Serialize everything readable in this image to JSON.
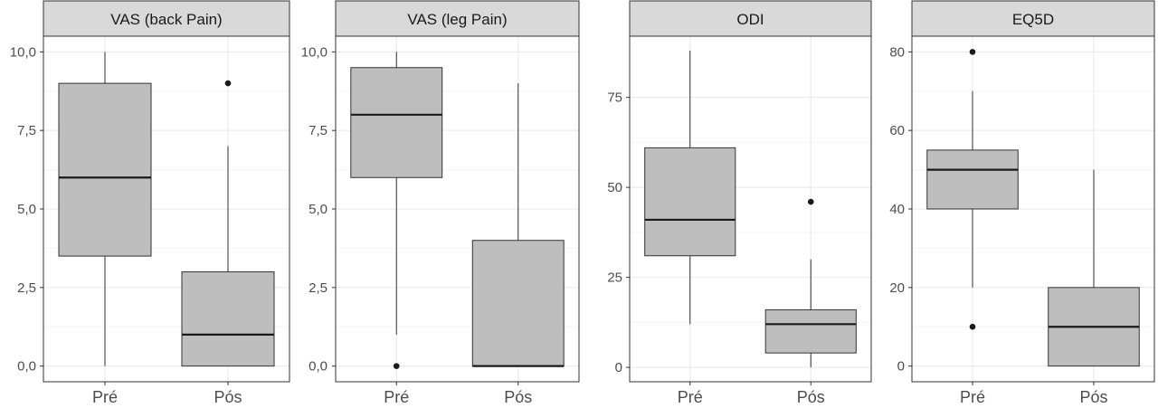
{
  "chart_data": [
    {
      "type": "box",
      "title": "VAS (back Pain)",
      "categories": [
        "Pré",
        "Pós"
      ],
      "ylim": [
        -0.5,
        10.5
      ],
      "yticks": [
        0,
        2.5,
        5,
        7.5,
        10
      ],
      "ytick_labels": [
        "0,0",
        "2,5",
        "5,0",
        "7,5",
        "10,0"
      ],
      "boxes": [
        {
          "category": "Pré",
          "min": 0,
          "q1": 3.5,
          "median": 6,
          "q3": 9,
          "max": 10,
          "outliers": []
        },
        {
          "category": "Pós",
          "min": 0,
          "q1": 0,
          "median": 1,
          "q3": 3,
          "max": 7,
          "outliers": [
            9
          ]
        }
      ],
      "grid": true
    },
    {
      "type": "box",
      "title": "VAS (leg Pain)",
      "categories": [
        "Pré",
        "Pós"
      ],
      "ylim": [
        -0.5,
        10.5
      ],
      "yticks": [
        0,
        2.5,
        5,
        7.5,
        10
      ],
      "ytick_labels": [
        "0,0",
        "2,5",
        "5,0",
        "7,5",
        "10,0"
      ],
      "boxes": [
        {
          "category": "Pré",
          "min": 1,
          "q1": 6,
          "median": 8,
          "q3": 9.5,
          "max": 10,
          "outliers": [
            0
          ]
        },
        {
          "category": "Pós",
          "min": 0,
          "q1": 0,
          "median": 0,
          "q3": 4,
          "max": 9,
          "outliers": []
        }
      ],
      "grid": true
    },
    {
      "type": "box",
      "title": "ODI",
      "categories": [
        "Pré",
        "Pós"
      ],
      "ylim": [
        -4,
        92
      ],
      "yticks": [
        0,
        25,
        50,
        75
      ],
      "ytick_labels": [
        "0",
        "25",
        "50",
        "75"
      ],
      "boxes": [
        {
          "category": "Pré",
          "min": 12,
          "q1": 31,
          "median": 41,
          "q3": 61,
          "max": 88,
          "outliers": []
        },
        {
          "category": "Pós",
          "min": 0,
          "q1": 4,
          "median": 12,
          "q3": 16,
          "max": 30,
          "outliers": [
            46
          ]
        }
      ],
      "grid": true
    },
    {
      "type": "box",
      "title": "EQ5D",
      "categories": [
        "Pré",
        "Pós"
      ],
      "ylim": [
        -4,
        84
      ],
      "yticks": [
        0,
        20,
        40,
        60,
        80
      ],
      "ytick_labels": [
        "0",
        "20",
        "40",
        "60",
        "80"
      ],
      "boxes": [
        {
          "category": "Pré",
          "min": 20,
          "q1": 40,
          "median": 50,
          "q3": 55,
          "max": 70,
          "outliers": [
            80,
            10
          ]
        },
        {
          "category": "Pós",
          "min": 0,
          "q1": 0,
          "median": 10,
          "q3": 20,
          "max": 50,
          "outliers": []
        }
      ],
      "grid": true
    }
  ],
  "colors": {
    "box_fill": "#bebebe",
    "box_stroke": "#333333",
    "strip_fill": "#d9d9d9",
    "grid_major": "#ebebeb",
    "grid_minor": "#f5f5f5",
    "panel_border": "#333333",
    "outlier": "#1a1a1a"
  }
}
